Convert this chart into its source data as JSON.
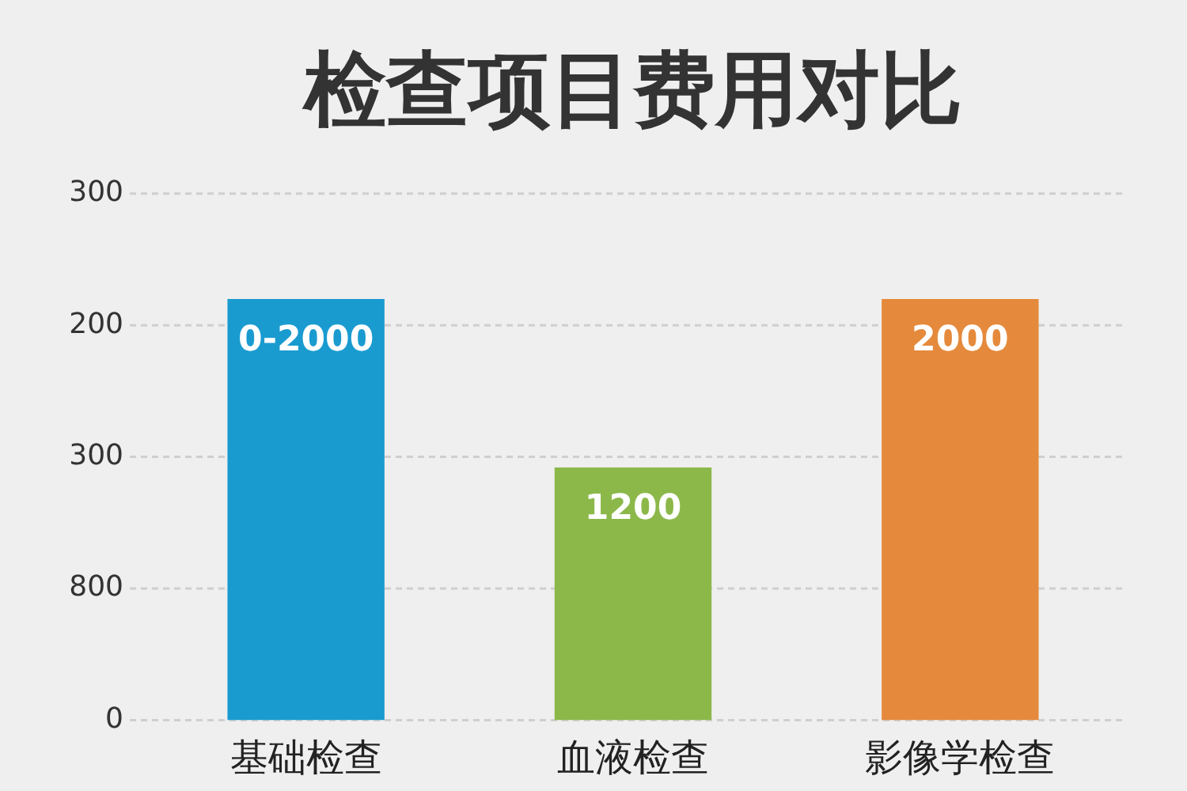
{
  "chart_data": {
    "type": "bar",
    "title": "检查项目费用对比",
    "categories": [
      "基础检查",
      "血液检查",
      "影像学检查"
    ],
    "values": [
      2000,
      1200,
      2000
    ],
    "colors": [
      "#1a9bd0",
      "#8cb84a",
      "#e58a3c"
    ],
    "value_labels": [
      "0-2000",
      "1200",
      "2000"
    ],
    "annotations": [
      "300",
      "200",
      "300",
      "800",
      "0"
    ],
    "grid": "y",
    "legend": false
  }
}
